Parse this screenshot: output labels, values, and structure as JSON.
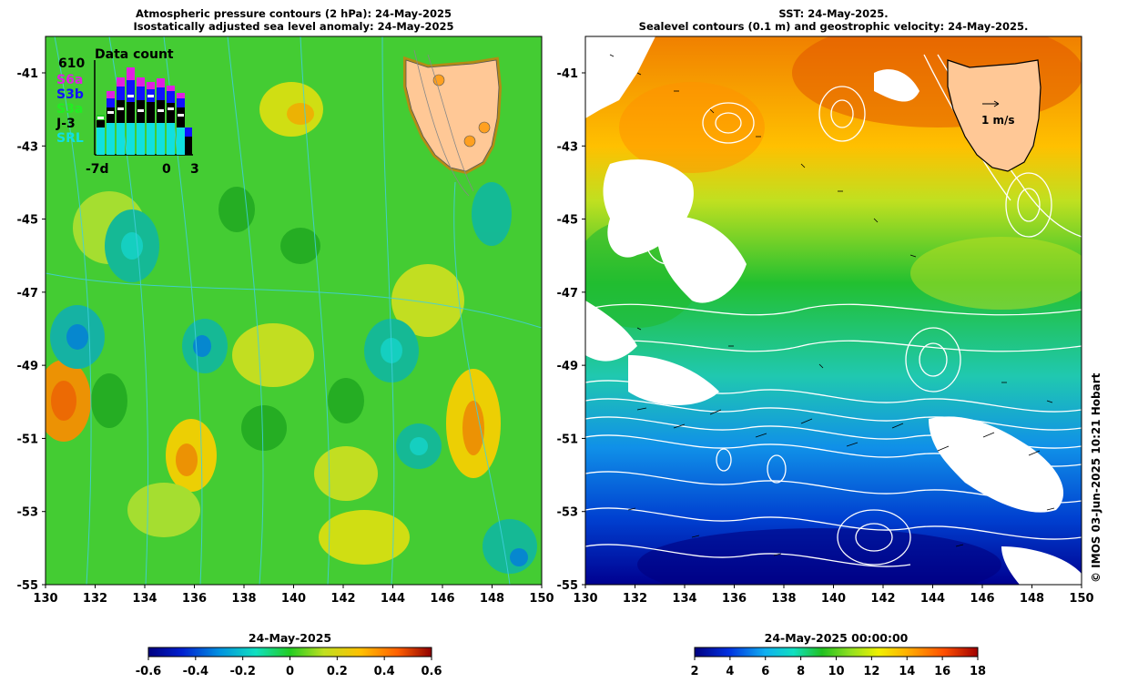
{
  "left_panel": {
    "title_line1": "Atmospheric pressure contours (2 hPa): 24-May-2025",
    "title_line2": "Isostatically adjusted sea level anomaly: 24-May-2025",
    "inset": {
      "title": "Data count",
      "max_label": "610",
      "missions": [
        {
          "name": "S6a",
          "color": "#e020e0"
        },
        {
          "name": "S3b",
          "color": "#1010ff"
        },
        {
          "name": "S3a",
          "color": "#22cc22"
        },
        {
          "name": "J-3",
          "color": "#000000"
        },
        {
          "name": "SRL",
          "color": "#10e0e0"
        }
      ],
      "x_labels": [
        "-7d",
        "0",
        "3"
      ]
    },
    "colorbar": {
      "title": "24-May-2025",
      "ticks": [
        "-0.6",
        "-0.4",
        "-0.2",
        "0",
        "0.2",
        "0.4",
        "0.6"
      ]
    }
  },
  "right_panel": {
    "title_line1": "SST: 24-May-2025.",
    "title_line2": "Sealevel contours (0.1 m) and geostrophic velocity: 24-May-2025.",
    "velocity_label": "1 m/s",
    "colorbar": {
      "title": "24-May-2025 00:00:00",
      "ticks": [
        "2",
        "4",
        "6",
        "8",
        "10",
        "12",
        "14",
        "16",
        "18"
      ]
    }
  },
  "axes": {
    "x_ticks": [
      "130",
      "132",
      "134",
      "136",
      "138",
      "140",
      "142",
      "144",
      "146",
      "148",
      "150"
    ],
    "y_ticks": [
      "-41",
      "-43",
      "-45",
      "-47",
      "-49",
      "-51",
      "-53",
      "-55"
    ]
  },
  "credit": "© IMOS 03-Jun-2025 10:21 Hobart",
  "colors": {
    "land": "#ffc896",
    "sla_positive": "#ff8000",
    "sla_zero": "#22cc22",
    "sla_negative": "#00b0e0"
  }
}
